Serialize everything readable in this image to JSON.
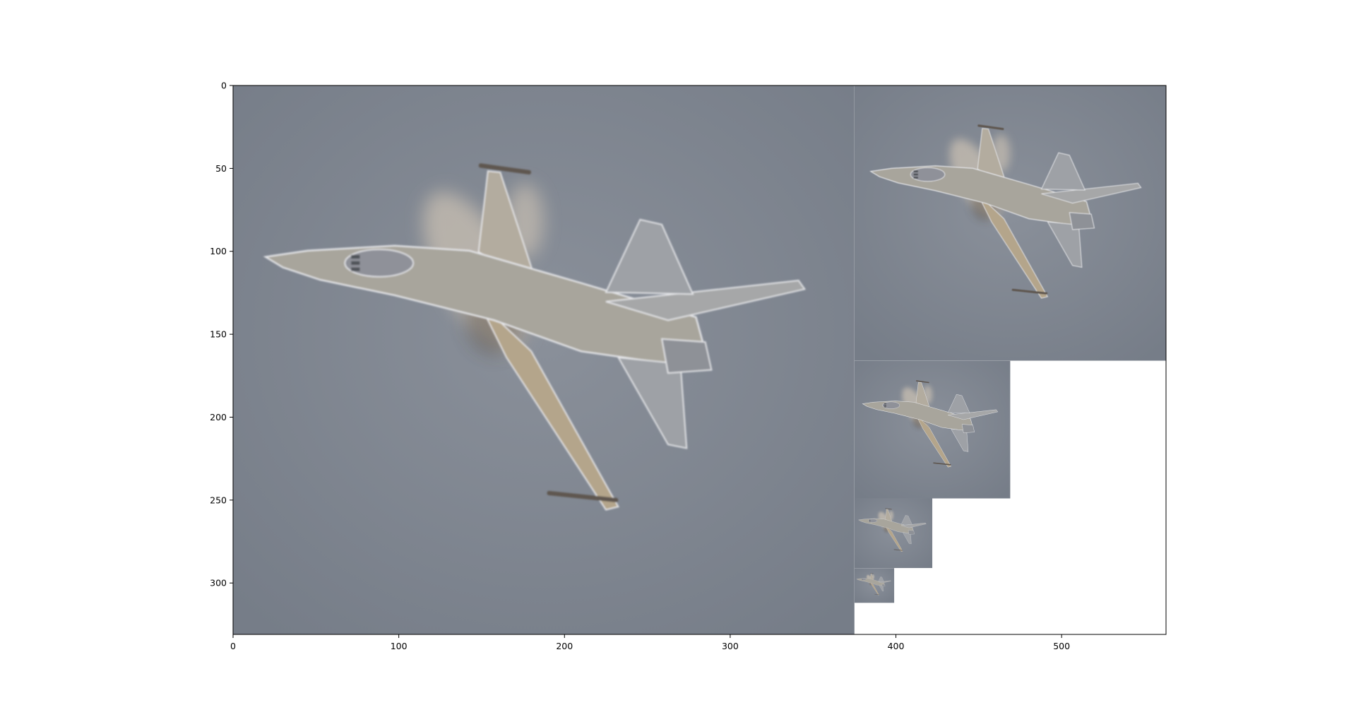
{
  "chart_data": {
    "type": "image",
    "title": "",
    "xlabel": "",
    "ylabel": "",
    "xlim": [
      0,
      563
    ],
    "ylim": [
      331,
      0
    ],
    "xticks": [
      0,
      100,
      200,
      300,
      400,
      500
    ],
    "yticks": [
      0,
      50,
      100,
      150,
      200,
      250,
      300
    ],
    "grid": false,
    "background_color": "#7e8590",
    "image_regions": [
      {
        "name": "level-0",
        "x": [
          0,
          375
        ],
        "y": [
          0,
          331
        ],
        "aircraft_scale": 1.0
      },
      {
        "name": "level-1",
        "x": [
          375,
          563
        ],
        "y": [
          0,
          166
        ],
        "aircraft_scale": 0.5
      },
      {
        "name": "level-2",
        "x": [
          375,
          469
        ],
        "y": [
          166,
          249
        ],
        "aircraft_scale": 0.25
      },
      {
        "name": "level-3",
        "x": [
          375,
          422
        ],
        "y": [
          249,
          291
        ],
        "aircraft_scale": 0.125
      },
      {
        "name": "level-4",
        "x": [
          375,
          399
        ],
        "y": [
          291,
          312
        ],
        "aircraft_scale": 0.0625
      }
    ],
    "empty_color": "#ffffff",
    "aircraft_body_color": "#a8a59c",
    "aircraft_blur_color": "#e2d3bd",
    "aircraft_dark_color": "#3b2f24"
  }
}
